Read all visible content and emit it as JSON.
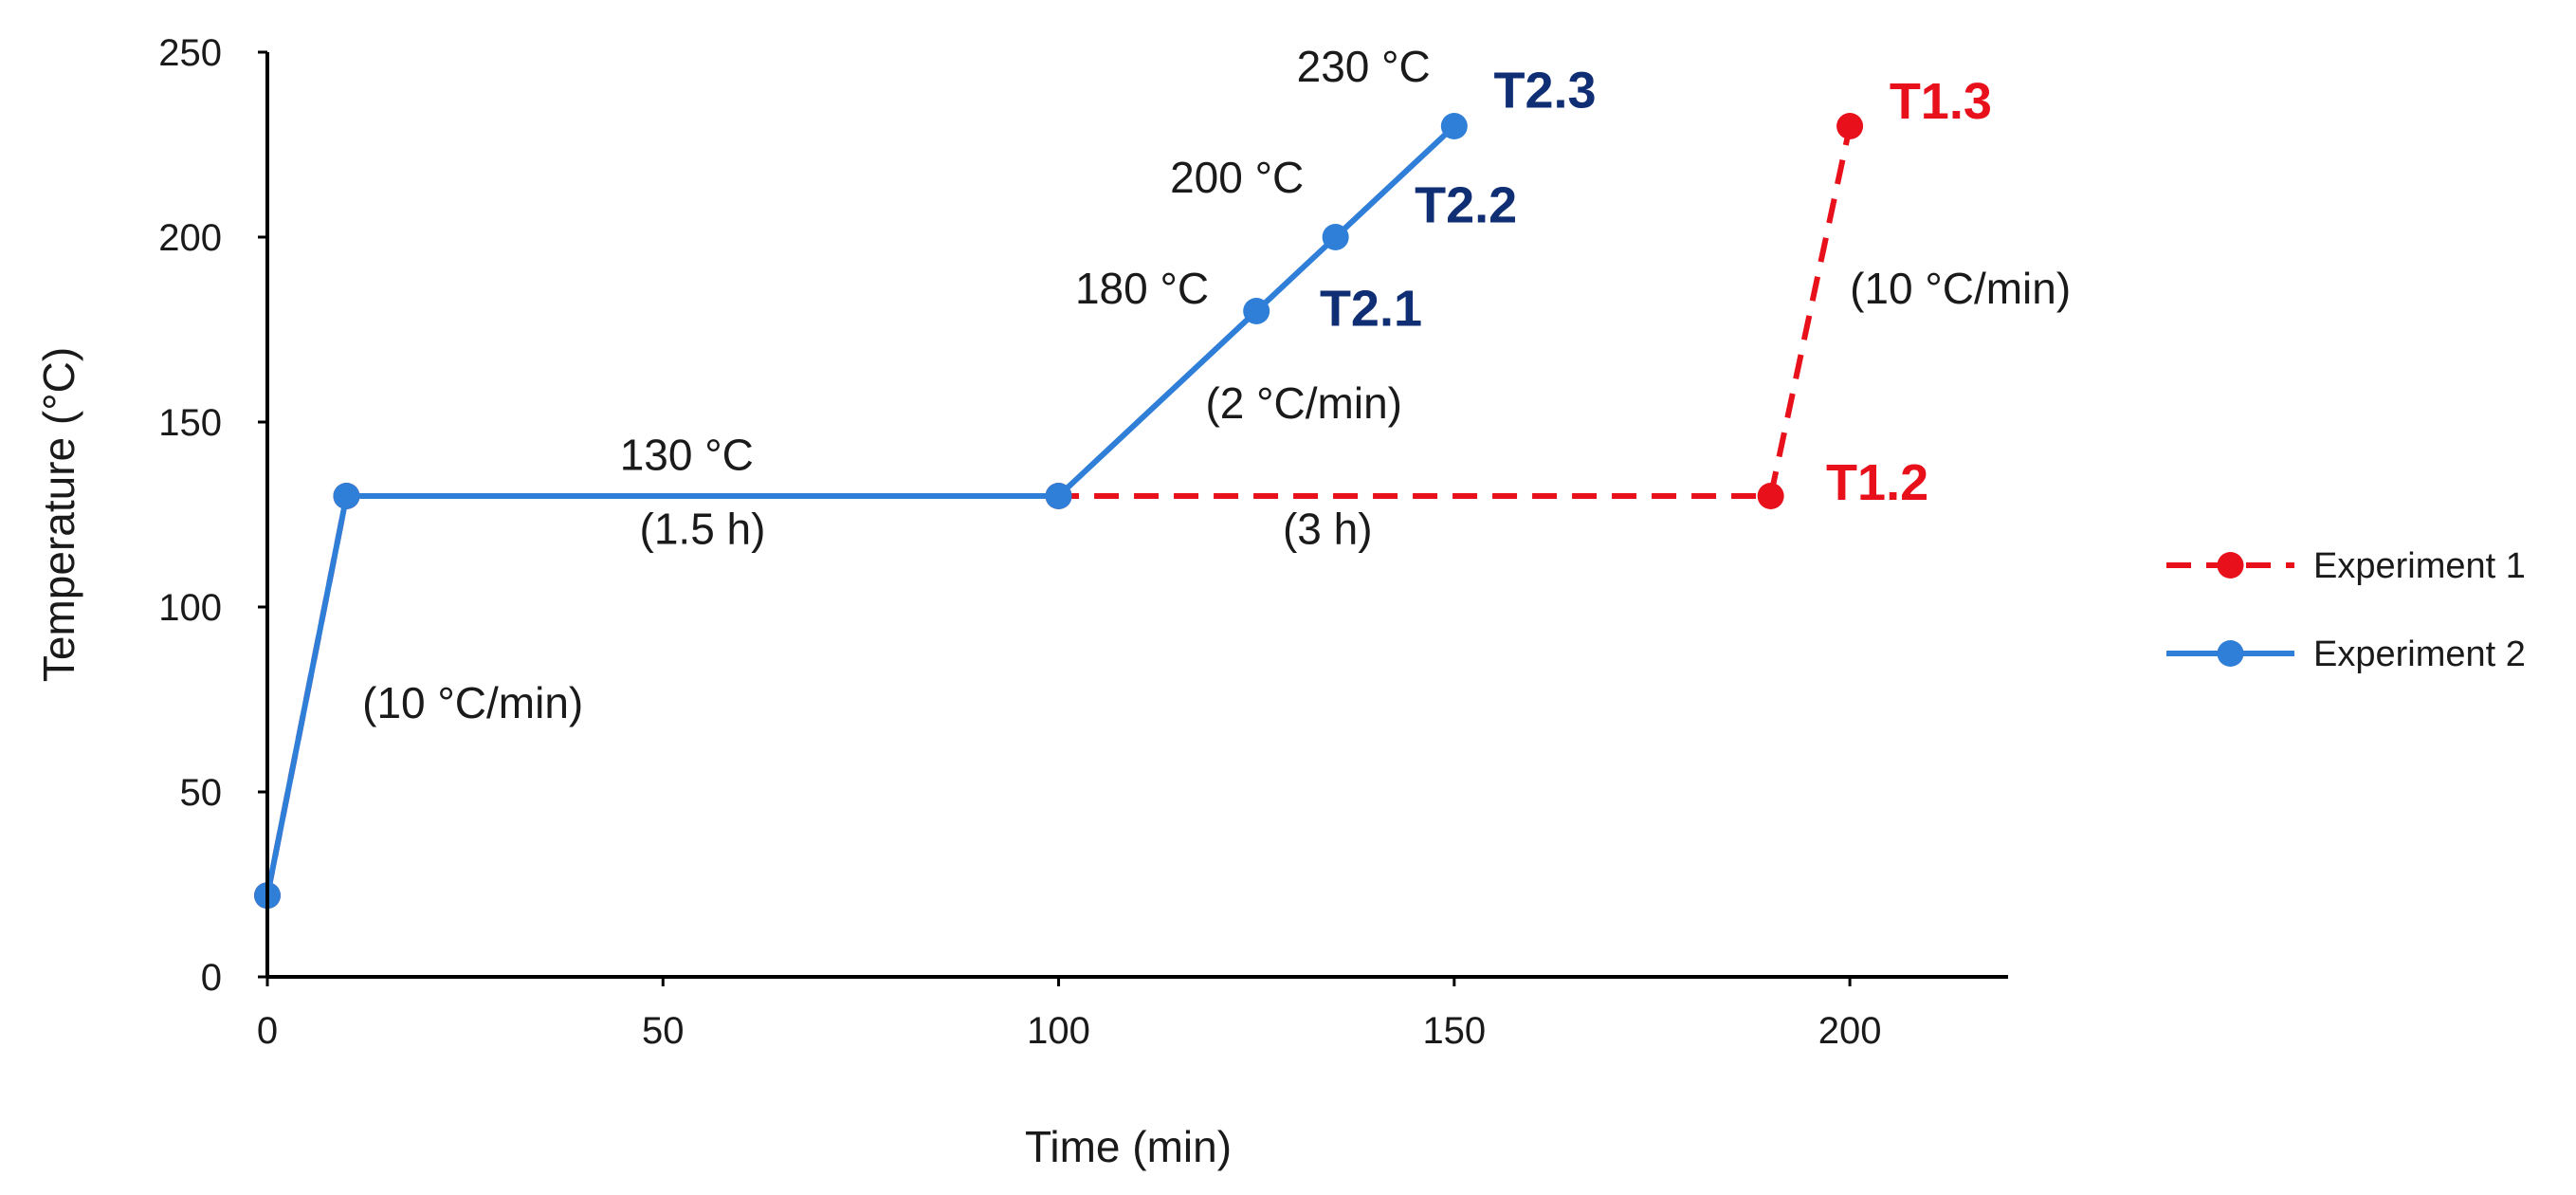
{
  "chart_data": {
    "type": "line",
    "title": "",
    "xlabel": "Time (min)",
    "ylabel": "Temperature (°C)",
    "xlim": [
      0,
      220
    ],
    "ylim": [
      0,
      250
    ],
    "xticks": [
      0,
      50,
      100,
      150,
      200
    ],
    "yticks": [
      0,
      50,
      100,
      150,
      200,
      250
    ],
    "grid": false,
    "legend_position": "right",
    "series": [
      {
        "name": "Experiment 1",
        "color": "#E8101A",
        "style": "dashed",
        "points": [
          [
            0,
            22
          ],
          [
            10,
            130
          ],
          [
            100,
            130
          ],
          [
            190,
            130
          ],
          [
            200,
            230
          ]
        ]
      },
      {
        "name": "Experiment 2",
        "color": "#2F7ED8",
        "style": "solid",
        "points": [
          [
            0,
            22
          ],
          [
            10,
            130
          ],
          [
            100,
            130
          ],
          [
            125,
            180
          ],
          [
            135,
            200
          ],
          [
            150,
            230
          ]
        ]
      }
    ],
    "annotations": [
      {
        "text": "(10 °C/min)",
        "x": 12,
        "y": 70,
        "anchor": "start",
        "weight": "normal",
        "color": "#1a1a1a"
      },
      {
        "text": "130 °C",
        "x": 53,
        "y": 137,
        "anchor": "middle",
        "weight": "normal",
        "color": "#1a1a1a"
      },
      {
        "text": "(1.5 h)",
        "x": 55,
        "y": 117,
        "anchor": "middle",
        "weight": "normal",
        "color": "#1a1a1a"
      },
      {
        "text": "(3 h)",
        "x": 134,
        "y": 117,
        "anchor": "middle",
        "weight": "normal",
        "color": "#1a1a1a"
      },
      {
        "text": "(2 °C/min)",
        "x": 131,
        "y": 151,
        "anchor": "middle",
        "weight": "normal",
        "color": "#1a1a1a"
      },
      {
        "text": "180 °C",
        "x": 119,
        "y": 182,
        "anchor": "end",
        "weight": "normal",
        "color": "#1a1a1a"
      },
      {
        "text": "200 °C",
        "x": 131,
        "y": 212,
        "anchor": "end",
        "weight": "normal",
        "color": "#1a1a1a"
      },
      {
        "text": "230 °C",
        "x": 147,
        "y": 242,
        "anchor": "end",
        "weight": "normal",
        "color": "#1a1a1a"
      },
      {
        "text": "T2.1",
        "x": 133,
        "y": 176,
        "anchor": "start",
        "weight": "bold",
        "color": "#0F2E73"
      },
      {
        "text": "T2.2",
        "x": 145,
        "y": 204,
        "anchor": "start",
        "weight": "bold",
        "color": "#0F2E73"
      },
      {
        "text": "T2.3",
        "x": 155,
        "y": 235,
        "anchor": "start",
        "weight": "bold",
        "color": "#0F2E73"
      },
      {
        "text": "T1.2",
        "x": 197,
        "y": 129,
        "anchor": "start",
        "weight": "bold",
        "color": "#E8101A"
      },
      {
        "text": "T1.3",
        "x": 205,
        "y": 232,
        "anchor": "start",
        "weight": "bold",
        "color": "#E8101A"
      },
      {
        "text": "(10 °C/min)",
        "x": 200,
        "y": 182,
        "anchor": "start",
        "weight": "normal",
        "color": "#1a1a1a"
      }
    ]
  }
}
